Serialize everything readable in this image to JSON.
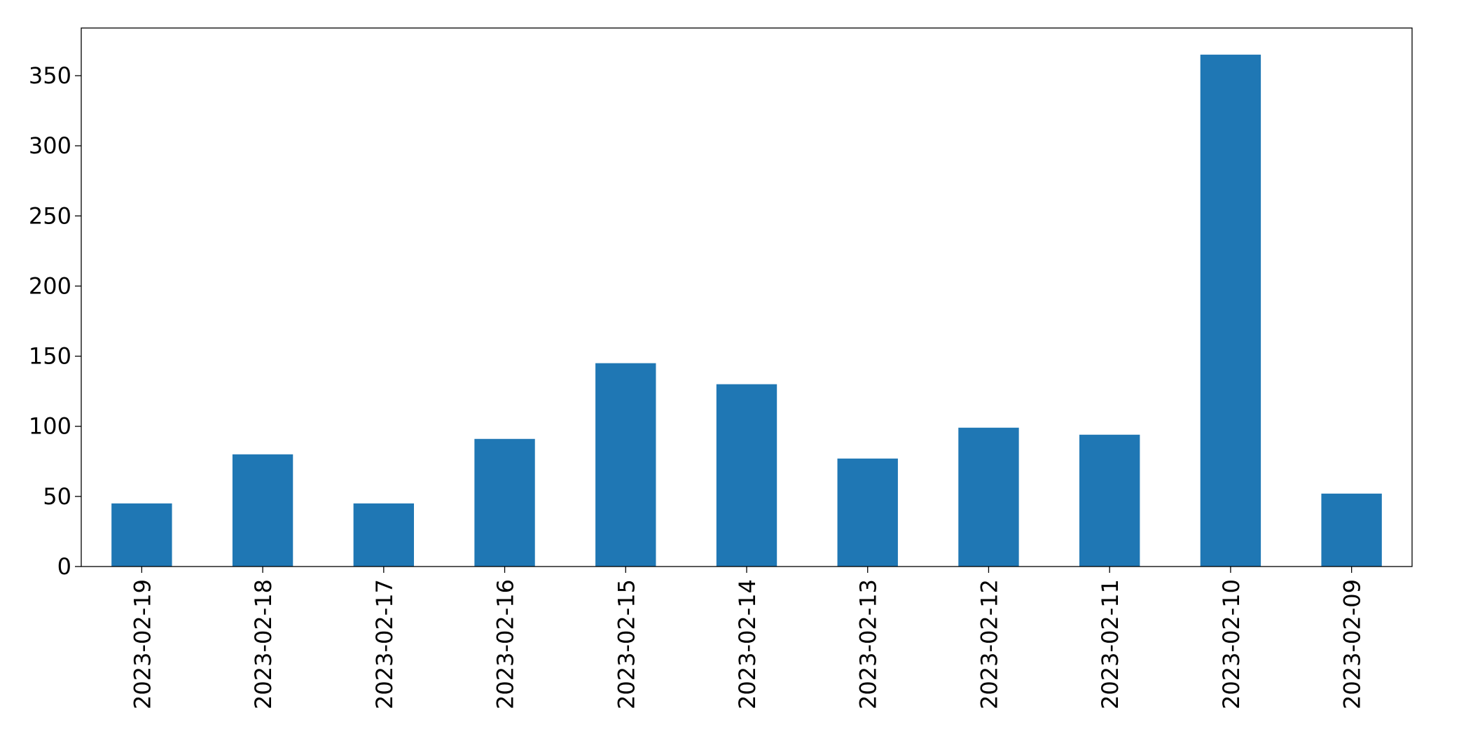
{
  "chart_data": {
    "type": "bar",
    "categories": [
      "2023-02-19",
      "2023-02-18",
      "2023-02-17",
      "2023-02-16",
      "2023-02-15",
      "2023-02-14",
      "2023-02-13",
      "2023-02-12",
      "2023-02-11",
      "2023-02-10",
      "2023-02-09"
    ],
    "values": [
      45,
      80,
      45,
      91,
      145,
      130,
      77,
      99,
      94,
      365,
      52
    ],
    "color": "#1f77b4",
    "ylim": [
      0,
      384
    ],
    "yticks": [
      0,
      50,
      100,
      150,
      200,
      250,
      300,
      350
    ],
    "grid": false
  }
}
